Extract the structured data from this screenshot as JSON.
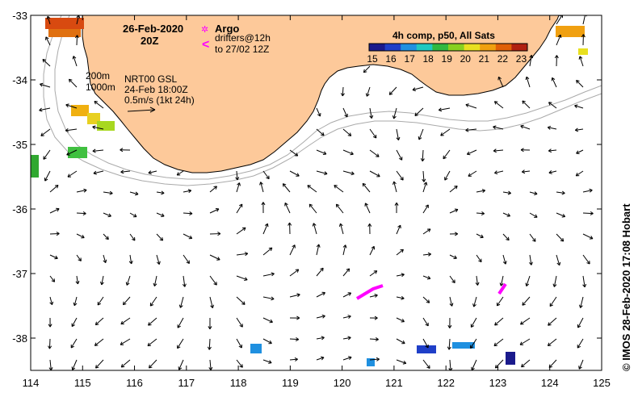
{
  "map": {
    "title_date": "26-Feb-2020",
    "title_time": "20Z",
    "legend_argo_symbol": "✲",
    "legend_argo": "Argo",
    "legend_drifters_symbol": "<",
    "legend_drifters_line1": "drifters@12h",
    "legend_drifters_line2": "to 27/02 12Z",
    "contour_200": "200m",
    "contour_1000": "1000m",
    "product_line1": "NRT00 GSL",
    "product_line2": "24-Feb 18:00Z",
    "vector_scale": "0.5m/s (1kt 24h)",
    "credit": "© IMOS 28-Feb-2020 17:08 Hobart",
    "colors": {
      "land": "#fdc99a",
      "argo": "#ff00ff",
      "drifter": "#ff00ff",
      "contour": "#aaaaaa"
    }
  },
  "colorbar": {
    "title": "4h comp, p50, All Sats",
    "ticks": [
      "15",
      "16",
      "17",
      "18",
      "19",
      "20",
      "21",
      "22",
      "23"
    ],
    "min": 15,
    "max": 23.5,
    "colors": [
      "#1a1a8c",
      "#1f3fc8",
      "#1f90e0",
      "#20c8c0",
      "#30b840",
      "#88d020",
      "#e8e020",
      "#f0a010",
      "#e06008",
      "#b02010"
    ]
  },
  "axes": {
    "x_ticks": [
      "114",
      "115",
      "116",
      "117",
      "118",
      "119",
      "120",
      "121",
      "122",
      "123",
      "124",
      "125"
    ],
    "y_ticks": [
      "-33",
      "-34",
      "-35",
      "-36",
      "-37",
      "-38"
    ],
    "lon_min": 114,
    "lon_max": 125,
    "lat_max": -33,
    "lat_min": -38.5
  }
}
